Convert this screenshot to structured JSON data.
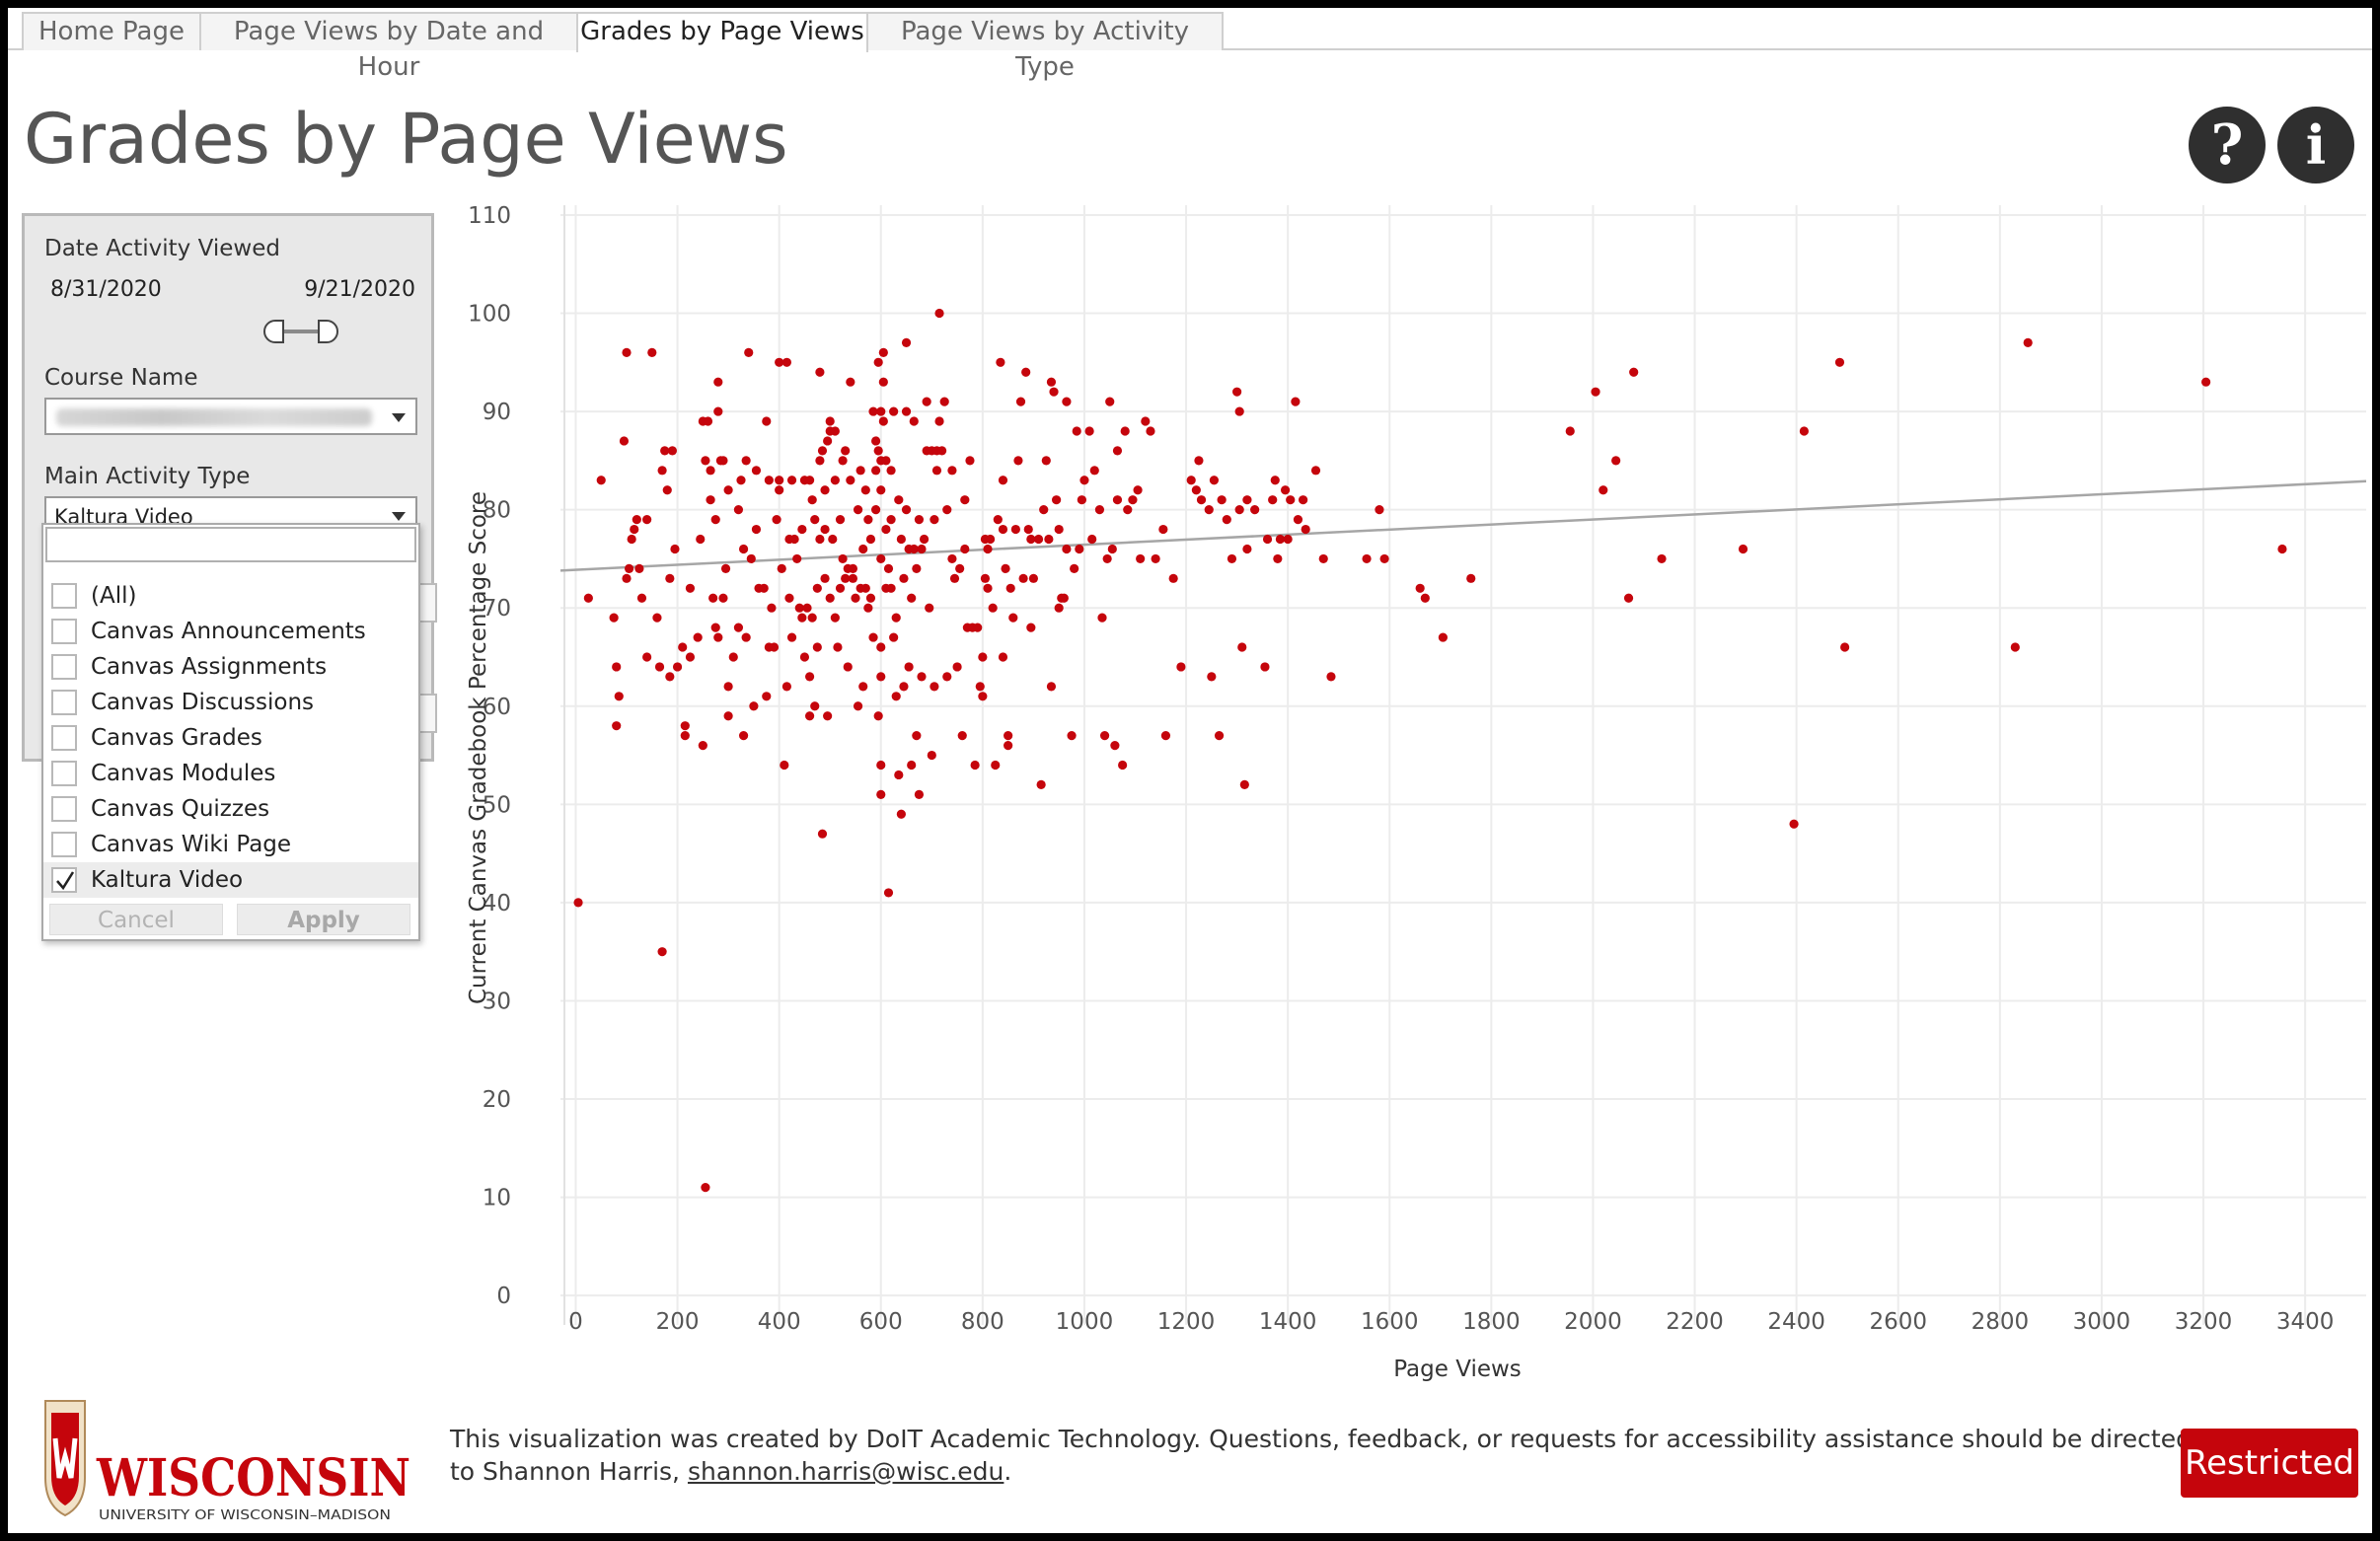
{
  "tabs": [
    "Home Page",
    "Page Views by Date and Hour",
    "Grades by Page Views",
    "Page Views by Activity Type"
  ],
  "page_title": "Grades by Page Views",
  "help_icon": "?",
  "info_icon": "i",
  "filters": {
    "date_label": "Date Activity Viewed",
    "date_start": "8/31/2020",
    "date_end": "9/21/2020",
    "course_label": "Course Name",
    "activity_label": "Main Activity Type",
    "activity_selected": "Kaltura Video",
    "options": [
      {
        "label": "(All)",
        "checked": false
      },
      {
        "label": "Canvas Announcements",
        "checked": false
      },
      {
        "label": "Canvas Assignments",
        "checked": false
      },
      {
        "label": "Canvas Discussions",
        "checked": false
      },
      {
        "label": "Canvas Grades",
        "checked": false
      },
      {
        "label": "Canvas Modules",
        "checked": false
      },
      {
        "label": "Canvas Quizzes",
        "checked": false
      },
      {
        "label": "Canvas Wiki Page",
        "checked": false
      },
      {
        "label": "Kaltura Video",
        "checked": true
      }
    ],
    "cancel_label": "Cancel",
    "apply_label": "Apply"
  },
  "footer": {
    "logo_text": "WISCONSIN",
    "logo_sub": "UNIVERSITY OF WISCONSIN–MADISON",
    "text": "This visualization was created by DoIT Academic Technology. Questions, feedback, or requests for accessibility assistance should be directed to Shannon Harris, ",
    "email": "shannon.harris@wisc.edu",
    "text_end": ".",
    "restricted": "Restricted"
  },
  "colors": {
    "point": "#c5050c",
    "trend": "#a6a6a6",
    "grid": "#ececec"
  },
  "chart_data": {
    "type": "scatter",
    "title": "",
    "xlabel": "Page Views",
    "ylabel": "Current Canvas Gradebook Percentage Score",
    "xlim": [
      -30,
      3520
    ],
    "ylim": [
      -3,
      111
    ],
    "xticks": [
      0,
      200,
      400,
      600,
      800,
      1000,
      1200,
      1400,
      1600,
      1800,
      2000,
      2200,
      2400,
      2600,
      2800,
      3000,
      3200,
      3400
    ],
    "yticks": [
      0,
      10,
      20,
      30,
      40,
      50,
      60,
      70,
      80,
      90,
      100,
      110
    ],
    "trend_line": [
      [
        -30,
        73.8
      ],
      [
        3520,
        82.9
      ]
    ],
    "points": [
      [
        5,
        40
      ],
      [
        25,
        71
      ],
      [
        50,
        83
      ],
      [
        75,
        69
      ],
      [
        80,
        64
      ],
      [
        85,
        61
      ],
      [
        80,
        58
      ],
      [
        95,
        87
      ],
      [
        100,
        73
      ],
      [
        100,
        96
      ],
      [
        105,
        74
      ],
      [
        110,
        77
      ],
      [
        115,
        78
      ],
      [
        120,
        79
      ],
      [
        125,
        74
      ],
      [
        130,
        71
      ],
      [
        140,
        79
      ],
      [
        140,
        65
      ],
      [
        150,
        96
      ],
      [
        160,
        69
      ],
      [
        165,
        64
      ],
      [
        170,
        35
      ],
      [
        170,
        84
      ],
      [
        175,
        86
      ],
      [
        180,
        82
      ],
      [
        185,
        73
      ],
      [
        185,
        63
      ],
      [
        190,
        86
      ],
      [
        195,
        76
      ],
      [
        200,
        64
      ],
      [
        210,
        66
      ],
      [
        215,
        58
      ],
      [
        215,
        57
      ],
      [
        225,
        72
      ],
      [
        225,
        65
      ],
      [
        240,
        67
      ],
      [
        250,
        89
      ],
      [
        245,
        77
      ],
      [
        255,
        85
      ],
      [
        250,
        56
      ],
      [
        255,
        11
      ],
      [
        260,
        89
      ],
      [
        265,
        84
      ],
      [
        265,
        81
      ],
      [
        270,
        71
      ],
      [
        275,
        68
      ],
      [
        275,
        79
      ],
      [
        280,
        67
      ],
      [
        280,
        93
      ],
      [
        280,
        90
      ],
      [
        285,
        85
      ],
      [
        290,
        85
      ],
      [
        290,
        71
      ],
      [
        295,
        74
      ],
      [
        300,
        59
      ],
      [
        300,
        62
      ],
      [
        300,
        82
      ],
      [
        310,
        65
      ],
      [
        320,
        80
      ],
      [
        320,
        68
      ],
      [
        325,
        83
      ],
      [
        330,
        57
      ],
      [
        330,
        76
      ],
      [
        335,
        85
      ],
      [
        335,
        67
      ],
      [
        340,
        96
      ],
      [
        345,
        75
      ],
      [
        350,
        60
      ],
      [
        355,
        84
      ],
      [
        355,
        78
      ],
      [
        360,
        72
      ],
      [
        370,
        72
      ],
      [
        375,
        89
      ],
      [
        375,
        61
      ],
      [
        380,
        83
      ],
      [
        380,
        66
      ],
      [
        385,
        70
      ],
      [
        390,
        66
      ],
      [
        395,
        79
      ],
      [
        400,
        95
      ],
      [
        400,
        82
      ],
      [
        400,
        83
      ],
      [
        405,
        74
      ],
      [
        410,
        54
      ],
      [
        415,
        95
      ],
      [
        415,
        62
      ],
      [
        420,
        77
      ],
      [
        420,
        71
      ],
      [
        425,
        83
      ],
      [
        425,
        67
      ],
      [
        430,
        77
      ],
      [
        435,
        75
      ],
      [
        440,
        70
      ],
      [
        445,
        78
      ],
      [
        445,
        69
      ],
      [
        450,
        83
      ],
      [
        450,
        65
      ],
      [
        455,
        70
      ],
      [
        460,
        63
      ],
      [
        460,
        83
      ],
      [
        460,
        59
      ],
      [
        465,
        81
      ],
      [
        465,
        69
      ],
      [
        470,
        79
      ],
      [
        470,
        60
      ],
      [
        475,
        72
      ],
      [
        475,
        66
      ],
      [
        480,
        77
      ],
      [
        480,
        85
      ],
      [
        480,
        94
      ],
      [
        485,
        86
      ],
      [
        485,
        47
      ],
      [
        490,
        82
      ],
      [
        490,
        78
      ],
      [
        490,
        73
      ],
      [
        495,
        87
      ],
      [
        495,
        59
      ],
      [
        500,
        88
      ],
      [
        500,
        89
      ],
      [
        500,
        71
      ],
      [
        505,
        77
      ],
      [
        510,
        83
      ],
      [
        510,
        88
      ],
      [
        510,
        69
      ],
      [
        515,
        66
      ],
      [
        520,
        79
      ],
      [
        520,
        72
      ],
      [
        525,
        75
      ],
      [
        525,
        85
      ],
      [
        530,
        86
      ],
      [
        530,
        73
      ],
      [
        535,
        74
      ],
      [
        535,
        64
      ],
      [
        540,
        83
      ],
      [
        540,
        93
      ],
      [
        545,
        74
      ],
      [
        545,
        73
      ],
      [
        550,
        71
      ],
      [
        555,
        80
      ],
      [
        555,
        60
      ],
      [
        560,
        84
      ],
      [
        560,
        72
      ],
      [
        565,
        76
      ],
      [
        565,
        62
      ],
      [
        570,
        82
      ],
      [
        570,
        72
      ],
      [
        575,
        70
      ],
      [
        575,
        79
      ],
      [
        580,
        77
      ],
      [
        580,
        71
      ],
      [
        585,
        90
      ],
      [
        585,
        67
      ],
      [
        590,
        87
      ],
      [
        590,
        84
      ],
      [
        590,
        80
      ],
      [
        595,
        95
      ],
      [
        595,
        59
      ],
      [
        595,
        86
      ],
      [
        600,
        90
      ],
      [
        600,
        85
      ],
      [
        600,
        82
      ],
      [
        600,
        75
      ],
      [
        600,
        66
      ],
      [
        600,
        63
      ],
      [
        600,
        51
      ],
      [
        600,
        54
      ],
      [
        605,
        89
      ],
      [
        605,
        93
      ],
      [
        605,
        96
      ],
      [
        610,
        85
      ],
      [
        610,
        78
      ],
      [
        610,
        72
      ],
      [
        615,
        74
      ],
      [
        615,
        41
      ],
      [
        620,
        84
      ],
      [
        620,
        79
      ],
      [
        620,
        72
      ],
      [
        625,
        90
      ],
      [
        625,
        67
      ],
      [
        630,
        69
      ],
      [
        630,
        61
      ],
      [
        635,
        81
      ],
      [
        635,
        53
      ],
      [
        640,
        49
      ],
      [
        640,
        77
      ],
      [
        645,
        73
      ],
      [
        645,
        62
      ],
      [
        650,
        90
      ],
      [
        650,
        97
      ],
      [
        650,
        80
      ],
      [
        655,
        76
      ],
      [
        655,
        64
      ],
      [
        660,
        71
      ],
      [
        660,
        54
      ],
      [
        665,
        76
      ],
      [
        665,
        89
      ],
      [
        670,
        74
      ],
      [
        670,
        57
      ],
      [
        675,
        51
      ],
      [
        675,
        79
      ],
      [
        680,
        76
      ],
      [
        680,
        63
      ],
      [
        685,
        77
      ],
      [
        690,
        91
      ],
      [
        690,
        86
      ],
      [
        695,
        70
      ],
      [
        700,
        86
      ],
      [
        700,
        55
      ],
      [
        705,
        79
      ],
      [
        705,
        62
      ],
      [
        710,
        86
      ],
      [
        710,
        84
      ],
      [
        715,
        100
      ],
      [
        715,
        89
      ],
      [
        720,
        86
      ],
      [
        725,
        91
      ],
      [
        730,
        80
      ],
      [
        730,
        63
      ],
      [
        740,
        84
      ],
      [
        740,
        75
      ],
      [
        745,
        73
      ],
      [
        750,
        64
      ],
      [
        755,
        74
      ],
      [
        760,
        57
      ],
      [
        765,
        81
      ],
      [
        765,
        76
      ],
      [
        770,
        68
      ],
      [
        775,
        85
      ],
      [
        780,
        68
      ],
      [
        785,
        54
      ],
      [
        790,
        68
      ],
      [
        795,
        62
      ],
      [
        800,
        61
      ],
      [
        800,
        65
      ],
      [
        805,
        77
      ],
      [
        805,
        73
      ],
      [
        810,
        76
      ],
      [
        810,
        72
      ],
      [
        815,
        77
      ],
      [
        820,
        70
      ],
      [
        825,
        54
      ],
      [
        830,
        79
      ],
      [
        835,
        95
      ],
      [
        840,
        83
      ],
      [
        840,
        65
      ],
      [
        840,
        78
      ],
      [
        845,
        74
      ],
      [
        850,
        57
      ],
      [
        850,
        56
      ],
      [
        855,
        72
      ],
      [
        860,
        69
      ],
      [
        865,
        78
      ],
      [
        870,
        85
      ],
      [
        875,
        91
      ],
      [
        880,
        73
      ],
      [
        885,
        94
      ],
      [
        890,
        78
      ],
      [
        895,
        77
      ],
      [
        895,
        68
      ],
      [
        900,
        73
      ],
      [
        910,
        77
      ],
      [
        915,
        52
      ],
      [
        920,
        80
      ],
      [
        925,
        85
      ],
      [
        930,
        77
      ],
      [
        935,
        93
      ],
      [
        935,
        62
      ],
      [
        940,
        92
      ],
      [
        945,
        81
      ],
      [
        950,
        78
      ],
      [
        950,
        70
      ],
      [
        955,
        71
      ],
      [
        960,
        71
      ],
      [
        965,
        91
      ],
      [
        965,
        76
      ],
      [
        975,
        57
      ],
      [
        980,
        74
      ],
      [
        985,
        88
      ],
      [
        990,
        76
      ],
      [
        995,
        81
      ],
      [
        1000,
        83
      ],
      [
        1010,
        88
      ],
      [
        1015,
        77
      ],
      [
        1020,
        84
      ],
      [
        1030,
        80
      ],
      [
        1035,
        69
      ],
      [
        1040,
        57
      ],
      [
        1045,
        75
      ],
      [
        1050,
        91
      ],
      [
        1055,
        76
      ],
      [
        1060,
        56
      ],
      [
        1065,
        86
      ],
      [
        1065,
        81
      ],
      [
        1075,
        54
      ],
      [
        1080,
        88
      ],
      [
        1085,
        80
      ],
      [
        1095,
        81
      ],
      [
        1105,
        82
      ],
      [
        1110,
        75
      ],
      [
        1120,
        89
      ],
      [
        1130,
        88
      ],
      [
        1140,
        75
      ],
      [
        1155,
        78
      ],
      [
        1160,
        57
      ],
      [
        1175,
        73
      ],
      [
        1190,
        64
      ],
      [
        1210,
        83
      ],
      [
        1220,
        82
      ],
      [
        1225,
        85
      ],
      [
        1230,
        81
      ],
      [
        1245,
        80
      ],
      [
        1250,
        63
      ],
      [
        1255,
        83
      ],
      [
        1265,
        57
      ],
      [
        1270,
        81
      ],
      [
        1280,
        79
      ],
      [
        1290,
        75
      ],
      [
        1300,
        92
      ],
      [
        1305,
        80
      ],
      [
        1305,
        90
      ],
      [
        1310,
        66
      ],
      [
        1315,
        52
      ],
      [
        1320,
        76
      ],
      [
        1320,
        81
      ],
      [
        1335,
        80
      ],
      [
        1355,
        64
      ],
      [
        1360,
        77
      ],
      [
        1370,
        81
      ],
      [
        1375,
        83
      ],
      [
        1380,
        75
      ],
      [
        1385,
        77
      ],
      [
        1395,
        82
      ],
      [
        1400,
        77
      ],
      [
        1405,
        81
      ],
      [
        1415,
        91
      ],
      [
        1420,
        79
      ],
      [
        1430,
        81
      ],
      [
        1435,
        78
      ],
      [
        1455,
        84
      ],
      [
        1470,
        75
      ],
      [
        1485,
        63
      ],
      [
        1555,
        75
      ],
      [
        1580,
        80
      ],
      [
        1590,
        75
      ],
      [
        1660,
        72
      ],
      [
        1670,
        71
      ],
      [
        1705,
        67
      ],
      [
        1760,
        73
      ],
      [
        1955,
        88
      ],
      [
        2005,
        92
      ],
      [
        2020,
        82
      ],
      [
        2045,
        85
      ],
      [
        2070,
        71
      ],
      [
        2080,
        94
      ],
      [
        2135,
        75
      ],
      [
        2295,
        76
      ],
      [
        2395,
        48
      ],
      [
        2415,
        88
      ],
      [
        2485,
        95
      ],
      [
        2495,
        66
      ],
      [
        2830,
        66
      ],
      [
        2855,
        97
      ],
      [
        3205,
        93
      ],
      [
        3355,
        76
      ]
    ]
  }
}
